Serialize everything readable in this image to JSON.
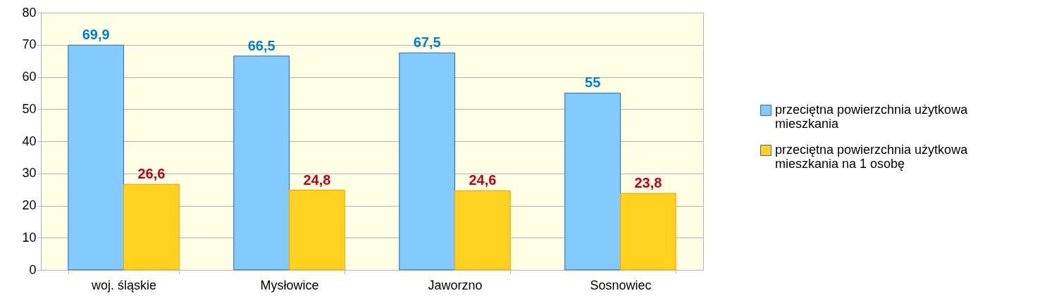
{
  "chart_data": {
    "type": "bar",
    "categories": [
      "woj. śląskie",
      "Mysłowice",
      "Jaworzno",
      "Sosnowiec"
    ],
    "series": [
      {
        "name": "przeciętna powierzchnia użytkowa mieszkania",
        "color": "#83caff",
        "values": [
          69.9,
          66.5,
          67.5,
          55
        ],
        "value_labels": [
          "69,9",
          "66,5",
          "67,5",
          "55"
        ]
      },
      {
        "name": "przeciętna powierzchnia użytkowa mieszkania na 1 osobę",
        "color": "#ffd320",
        "values": [
          26.6,
          24.8,
          24.6,
          23.8
        ],
        "value_labels": [
          "26,6",
          "24,8",
          "24,6",
          "23,8"
        ]
      }
    ],
    "ylim": [
      0,
      80
    ],
    "yticks": [
      0,
      10,
      20,
      30,
      40,
      50,
      60,
      70,
      80
    ],
    "grid": "y",
    "legend": "right"
  }
}
